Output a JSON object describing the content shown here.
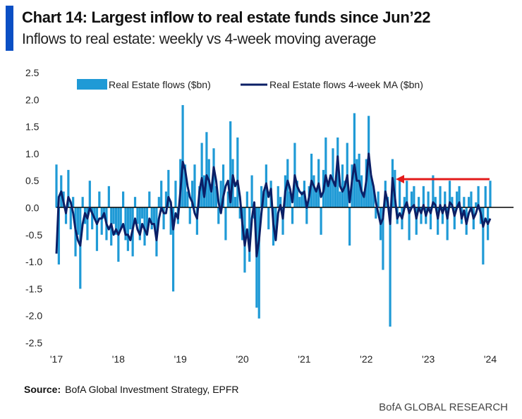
{
  "header": {
    "title": "Chart 14: Largest inflow to real estate funds since Jun’22",
    "subtitle": "Inflows to real estate: weekly vs 4-week moving average"
  },
  "footer": {
    "source_label": "Source:",
    "source_text": "BofA Global Investment Strategy, EPFR",
    "brand": "BofA GLOBAL RESEARCH"
  },
  "colors": {
    "bars": "#1f9ad6",
    "ma_line": "#0b1f66",
    "accent": "#0a4fc4",
    "arrow": "#e31b1b",
    "zero_line": "#000000"
  },
  "chart_data": {
    "type": "bar+line",
    "title": "",
    "xlabel": "",
    "ylabel": "",
    "ylim": [
      -2.5,
      2.5
    ],
    "xlim": [
      2017,
      2024.1
    ],
    "y_ticks": [
      "2.5",
      "2.0",
      "1.5",
      "1.0",
      "0.5",
      "0.0",
      "-0.5",
      "-1.0",
      "-1.5",
      "-2.0",
      "-2.5"
    ],
    "x_ticks": [
      "'17",
      "'18",
      "'19",
      "'20",
      "'21",
      "'22",
      "'23",
      "'24"
    ],
    "grid": false,
    "legend_position": "top",
    "annotation": "red arrow pointing back from latest inflow to the Jun'22 level",
    "series": [
      {
        "name": "Real Estate flows ($bn)",
        "type": "bar",
        "values": [
          0.8,
          -1.05,
          0.6,
          0.3,
          -0.3,
          0.7,
          -0.4,
          0.2,
          -0.9,
          -0.5,
          -1.5,
          0.2,
          -0.3,
          -0.6,
          0.5,
          -0.4,
          -0.2,
          -0.8,
          0.3,
          -0.5,
          -0.2,
          -0.6,
          0.4,
          -0.7,
          -0.3,
          -0.5,
          -1.0,
          -0.4,
          0.3,
          -0.6,
          -0.8,
          -0.4,
          -0.9,
          0.2,
          -0.3,
          -0.6,
          -0.2,
          -0.7,
          -0.5,
          0.3,
          -0.4,
          -0.3,
          -0.9,
          0.2,
          0.5,
          -0.4,
          0.3,
          0.7,
          -0.5,
          -1.55,
          0.5,
          -0.3,
          0.9,
          1.9,
          0.8,
          0.3,
          -0.3,
          0.5,
          0.8,
          -0.5,
          0.4,
          1.2,
          0.6,
          1.4,
          0.9,
          0.3,
          1.1,
          0.4,
          -0.3,
          0.5,
          0.8,
          -0.6,
          0.3,
          1.6,
          0.9,
          0.2,
          1.3,
          -0.2,
          -0.6,
          -1.2,
          0.3,
          -1.0,
          0.6,
          -0.2,
          -1.85,
          -2.05,
          0.4,
          0.3,
          0.8,
          -0.4,
          0.5,
          -0.7,
          -0.5,
          0.4,
          0.2,
          -0.5,
          0.6,
          0.9,
          0.3,
          -0.3,
          1.2,
          0.5,
          0.2,
          0.3,
          0.5,
          -0.3,
          0.4,
          1.0,
          0.6,
          0.3,
          0.9,
          -0.5,
          0.7,
          1.3,
          0.4,
          0.6,
          1.1,
          0.5,
          1.3,
          0.3,
          0.8,
          0.5,
          1.2,
          -0.7,
          0.8,
          1.75,
          0.9,
          1.0,
          0.6,
          0.3,
          0.9,
          1.7,
          0.6,
          0.4,
          -0.2,
          0.3,
          -0.6,
          -1.15,
          0.5,
          0.2,
          -2.2,
          0.9,
          0.7,
          -0.3,
          0.5,
          -0.4,
          0.2,
          0.5,
          -0.6,
          0.3,
          0.4,
          -0.5,
          0.2,
          -0.3,
          0.4,
          -0.3,
          0.3,
          -0.4,
          0.6,
          0.2,
          -0.5,
          0.4,
          -0.3,
          0.3,
          -0.6,
          0.5,
          0.2,
          -0.4,
          0.3,
          0.4,
          -0.3,
          0.2,
          -0.5,
          0.2,
          0.3,
          -0.4,
          0.1,
          0.4,
          -0.3,
          -1.05,
          0.4,
          -0.6,
          0.5
        ]
      },
      {
        "name": "Real Estate flows 4-week MA ($bn)",
        "type": "line",
        "values": [
          -0.85,
          0.2,
          0.3,
          0.1,
          -0.1,
          0.2,
          0.1,
          -0.1,
          -0.4,
          -0.6,
          -0.7,
          -0.3,
          -0.1,
          -0.2,
          0.0,
          -0.1,
          -0.2,
          -0.3,
          -0.2,
          -0.2,
          -0.1,
          -0.3,
          -0.4,
          -0.3,
          -0.5,
          -0.4,
          -0.5,
          -0.4,
          -0.3,
          -0.5,
          -0.5,
          -0.6,
          -0.4,
          -0.2,
          -0.4,
          -0.5,
          -0.3,
          -0.4,
          -0.5,
          -0.2,
          -0.3,
          -0.3,
          -0.6,
          -0.2,
          0.0,
          -0.1,
          -0.1,
          0.2,
          0.1,
          -0.4,
          -0.1,
          -0.2,
          0.3,
          0.85,
          0.7,
          0.4,
          0.2,
          0.1,
          -0.1,
          -0.2,
          0.3,
          0.55,
          0.2,
          0.6,
          0.5,
          0.3,
          0.75,
          0.5,
          0.1,
          -0.1,
          0.2,
          0.4,
          0.5,
          0.1,
          0.6,
          0.4,
          0.5,
          0.2,
          -0.3,
          -0.7,
          -0.4,
          -0.8,
          -0.2,
          0.1,
          -0.9,
          -0.6,
          -0.1,
          0.3,
          0.45,
          0.2,
          0.35,
          -0.3,
          -0.6,
          -0.1,
          0.05,
          -0.2,
          0.3,
          0.5,
          0.35,
          0.1,
          0.6,
          0.4,
          0.3,
          0.25,
          0.3,
          0.0,
          0.2,
          0.5,
          0.4,
          0.3,
          0.45,
          0.2,
          0.3,
          0.6,
          0.4,
          0.6,
          0.5,
          0.4,
          0.95,
          0.4,
          0.3,
          0.4,
          0.6,
          0.1,
          0.5,
          0.8,
          0.5,
          0.5,
          0.3,
          0.2,
          0.5,
          1.0,
          0.6,
          0.4,
          0.1,
          -0.1,
          -0.3,
          -0.2,
          0.3,
          0.1,
          -0.3,
          0.55,
          0.2,
          -0.2,
          -0.1,
          -0.2,
          0.0,
          0.1,
          -0.1,
          0.0,
          0.05,
          -0.2,
          0.0,
          -0.1,
          0.05,
          -0.15,
          0.0,
          -0.1,
          0.1,
          0.05,
          -0.2,
          0.05,
          -0.1,
          0.05,
          -0.2,
          0.1,
          0.05,
          -0.15,
          0.0,
          0.1,
          -0.2,
          -0.05,
          -0.3,
          -0.1,
          0.0,
          -0.2,
          -0.1,
          0.05,
          -0.1,
          -0.35,
          -0.2,
          -0.3,
          -0.2
        ]
      }
    ]
  }
}
